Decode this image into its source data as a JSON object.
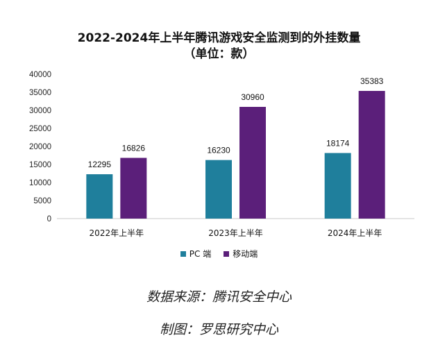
{
  "chart_data": {
    "type": "bar",
    "title": "2022-2024年上半年腾讯游戏安全监测到的外挂数量",
    "subtitle": "（单位：款）",
    "categories": [
      "2022年上半年",
      "2023年上半年",
      "2024年上半年"
    ],
    "series": [
      {
        "name": "PC 端",
        "color": "#1f7f9c",
        "values": [
          12295,
          16230,
          18174
        ]
      },
      {
        "name": "移动端",
        "color": "#5b1f7a",
        "values": [
          16826,
          30960,
          35383
        ]
      }
    ],
    "ylim": [
      0,
      40000
    ],
    "yticks": [
      0,
      5000,
      10000,
      15000,
      20000,
      25000,
      30000,
      35000,
      40000
    ],
    "xlabel": "",
    "ylabel": "",
    "grid": false,
    "legend_position": "bottom"
  },
  "footer": {
    "source": "数据来源：腾讯安全中心",
    "credit": "制图：罗思研究中心"
  }
}
